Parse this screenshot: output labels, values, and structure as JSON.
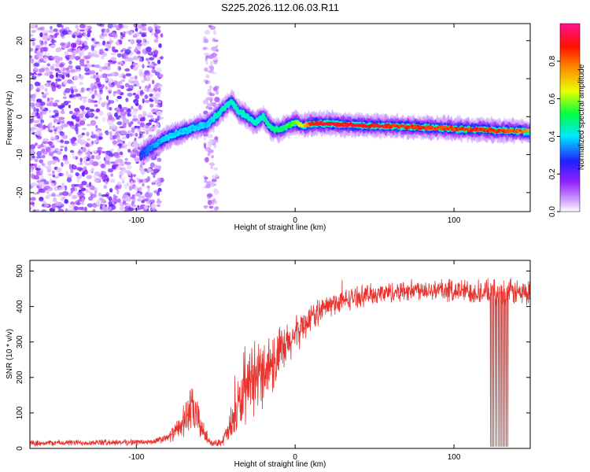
{
  "title": "S225.2026.112.06.03.R11",
  "colors": {
    "snr_line": "#e8322e",
    "axis": "#000000",
    "background": "#ffffff"
  },
  "chart_data": [
    {
      "type": "heatmap",
      "xlabel": "Height of straight line (km)",
      "ylabel": "Frequency (Hz)",
      "xlim": [
        -167,
        148
      ],
      "ylim": [
        -25,
        24.5
      ],
      "xticks": [
        -100,
        0,
        100
      ],
      "xtick_labels": [
        "-100",
        "0",
        "100"
      ],
      "yticks": [
        -20,
        -10,
        0,
        10,
        20
      ],
      "ytick_labels": [
        "-20",
        "-10",
        "0",
        "10",
        "20"
      ],
      "colorbar": {
        "label": "Normalized spectral amplitude",
        "range": [
          0,
          1
        ],
        "ticks": [
          0.0,
          0.2,
          0.4,
          0.6,
          0.8
        ],
        "tick_labels": [
          "0.0",
          "0.2",
          "0.4",
          "0.6",
          "0.8"
        ],
        "colormap": [
          "#ffffff",
          "#b040ff",
          "#2020ff",
          "#00e8ff",
          "#00ff40",
          "#e8ff00",
          "#ff9000",
          "#ff1000",
          "#ff1090"
        ]
      },
      "ridge": {
        "x": [
          -97,
          -90,
          -83,
          -75,
          -67,
          -60,
          -55,
          -48,
          -44,
          -40,
          -36,
          -30,
          -25,
          -20,
          -15,
          -10,
          -5,
          0,
          5,
          10,
          20,
          40,
          60,
          80,
          100,
          120,
          140,
          148
        ],
        "y": [
          -10,
          -8,
          -6,
          -4.5,
          -3.5,
          -2.5,
          -2,
          1,
          2.5,
          4,
          1.5,
          0,
          -1.5,
          0,
          -3,
          -3.5,
          -2.5,
          -1.5,
          -2.5,
          -1.8,
          -1.8,
          -2.3,
          -2.5,
          -2.8,
          -3.2,
          -3.5,
          -3.8,
          -4
        ],
        "peak_amplitude": [
          0.3,
          0.35,
          0.4,
          0.4,
          0.4,
          0.4,
          0.4,
          0.45,
          0.45,
          0.45,
          0.45,
          0.45,
          0.45,
          0.45,
          0.5,
          0.5,
          0.55,
          0.6,
          0.7,
          0.92,
          0.95,
          0.95,
          0.92,
          0.9,
          0.88,
          0.9,
          0.85,
          0.8
        ]
      },
      "noise_regions": [
        {
          "x_range": [
            -167,
            -84
          ],
          "amplitude_max": 0.2
        },
        {
          "x_range": [
            -57,
            -49
          ],
          "amplitude_max": 0.1
        }
      ]
    },
    {
      "type": "line",
      "xlabel": "Height of straight line (km)",
      "ylabel": "SNR (10 * v/v)",
      "xlim": [
        -167,
        148
      ],
      "ylim": [
        0,
        530
      ],
      "xticks": [
        -100,
        0,
        100
      ],
      "xtick_labels": [
        "-100",
        "0",
        "100"
      ],
      "yticks": [
        0,
        100,
        200,
        300,
        400,
        500
      ],
      "ytick_labels": [
        "0",
        "100",
        "200",
        "300",
        "400",
        "500"
      ],
      "series": [
        {
          "name": "SNR",
          "envelope_x": [
            -167,
            -90,
            -80,
            -72,
            -66,
            -62,
            -57,
            -52,
            -46,
            -40,
            -36,
            -30,
            -24,
            -18,
            -12,
            -6,
            0,
            10,
            20,
            40,
            60,
            80,
            100,
            120,
            140,
            148
          ],
          "envelope_mean": [
            15,
            18,
            30,
            60,
            110,
            90,
            40,
            12,
            20,
            60,
            120,
            160,
            200,
            230,
            250,
            280,
            320,
            370,
            400,
            430,
            440,
            450,
            445,
            440,
            440,
            435
          ],
          "envelope_spread": [
            10,
            10,
            15,
            40,
            80,
            70,
            25,
            8,
            15,
            60,
            90,
            100,
            110,
            110,
            100,
            80,
            60,
            45,
            40,
            35,
            35,
            35,
            40,
            40,
            45,
            45
          ],
          "dropout_x": [
            123,
            124,
            125,
            126,
            127,
            128,
            129,
            130,
            131,
            132,
            133,
            134
          ],
          "dropout_value": 5
        }
      ]
    }
  ]
}
